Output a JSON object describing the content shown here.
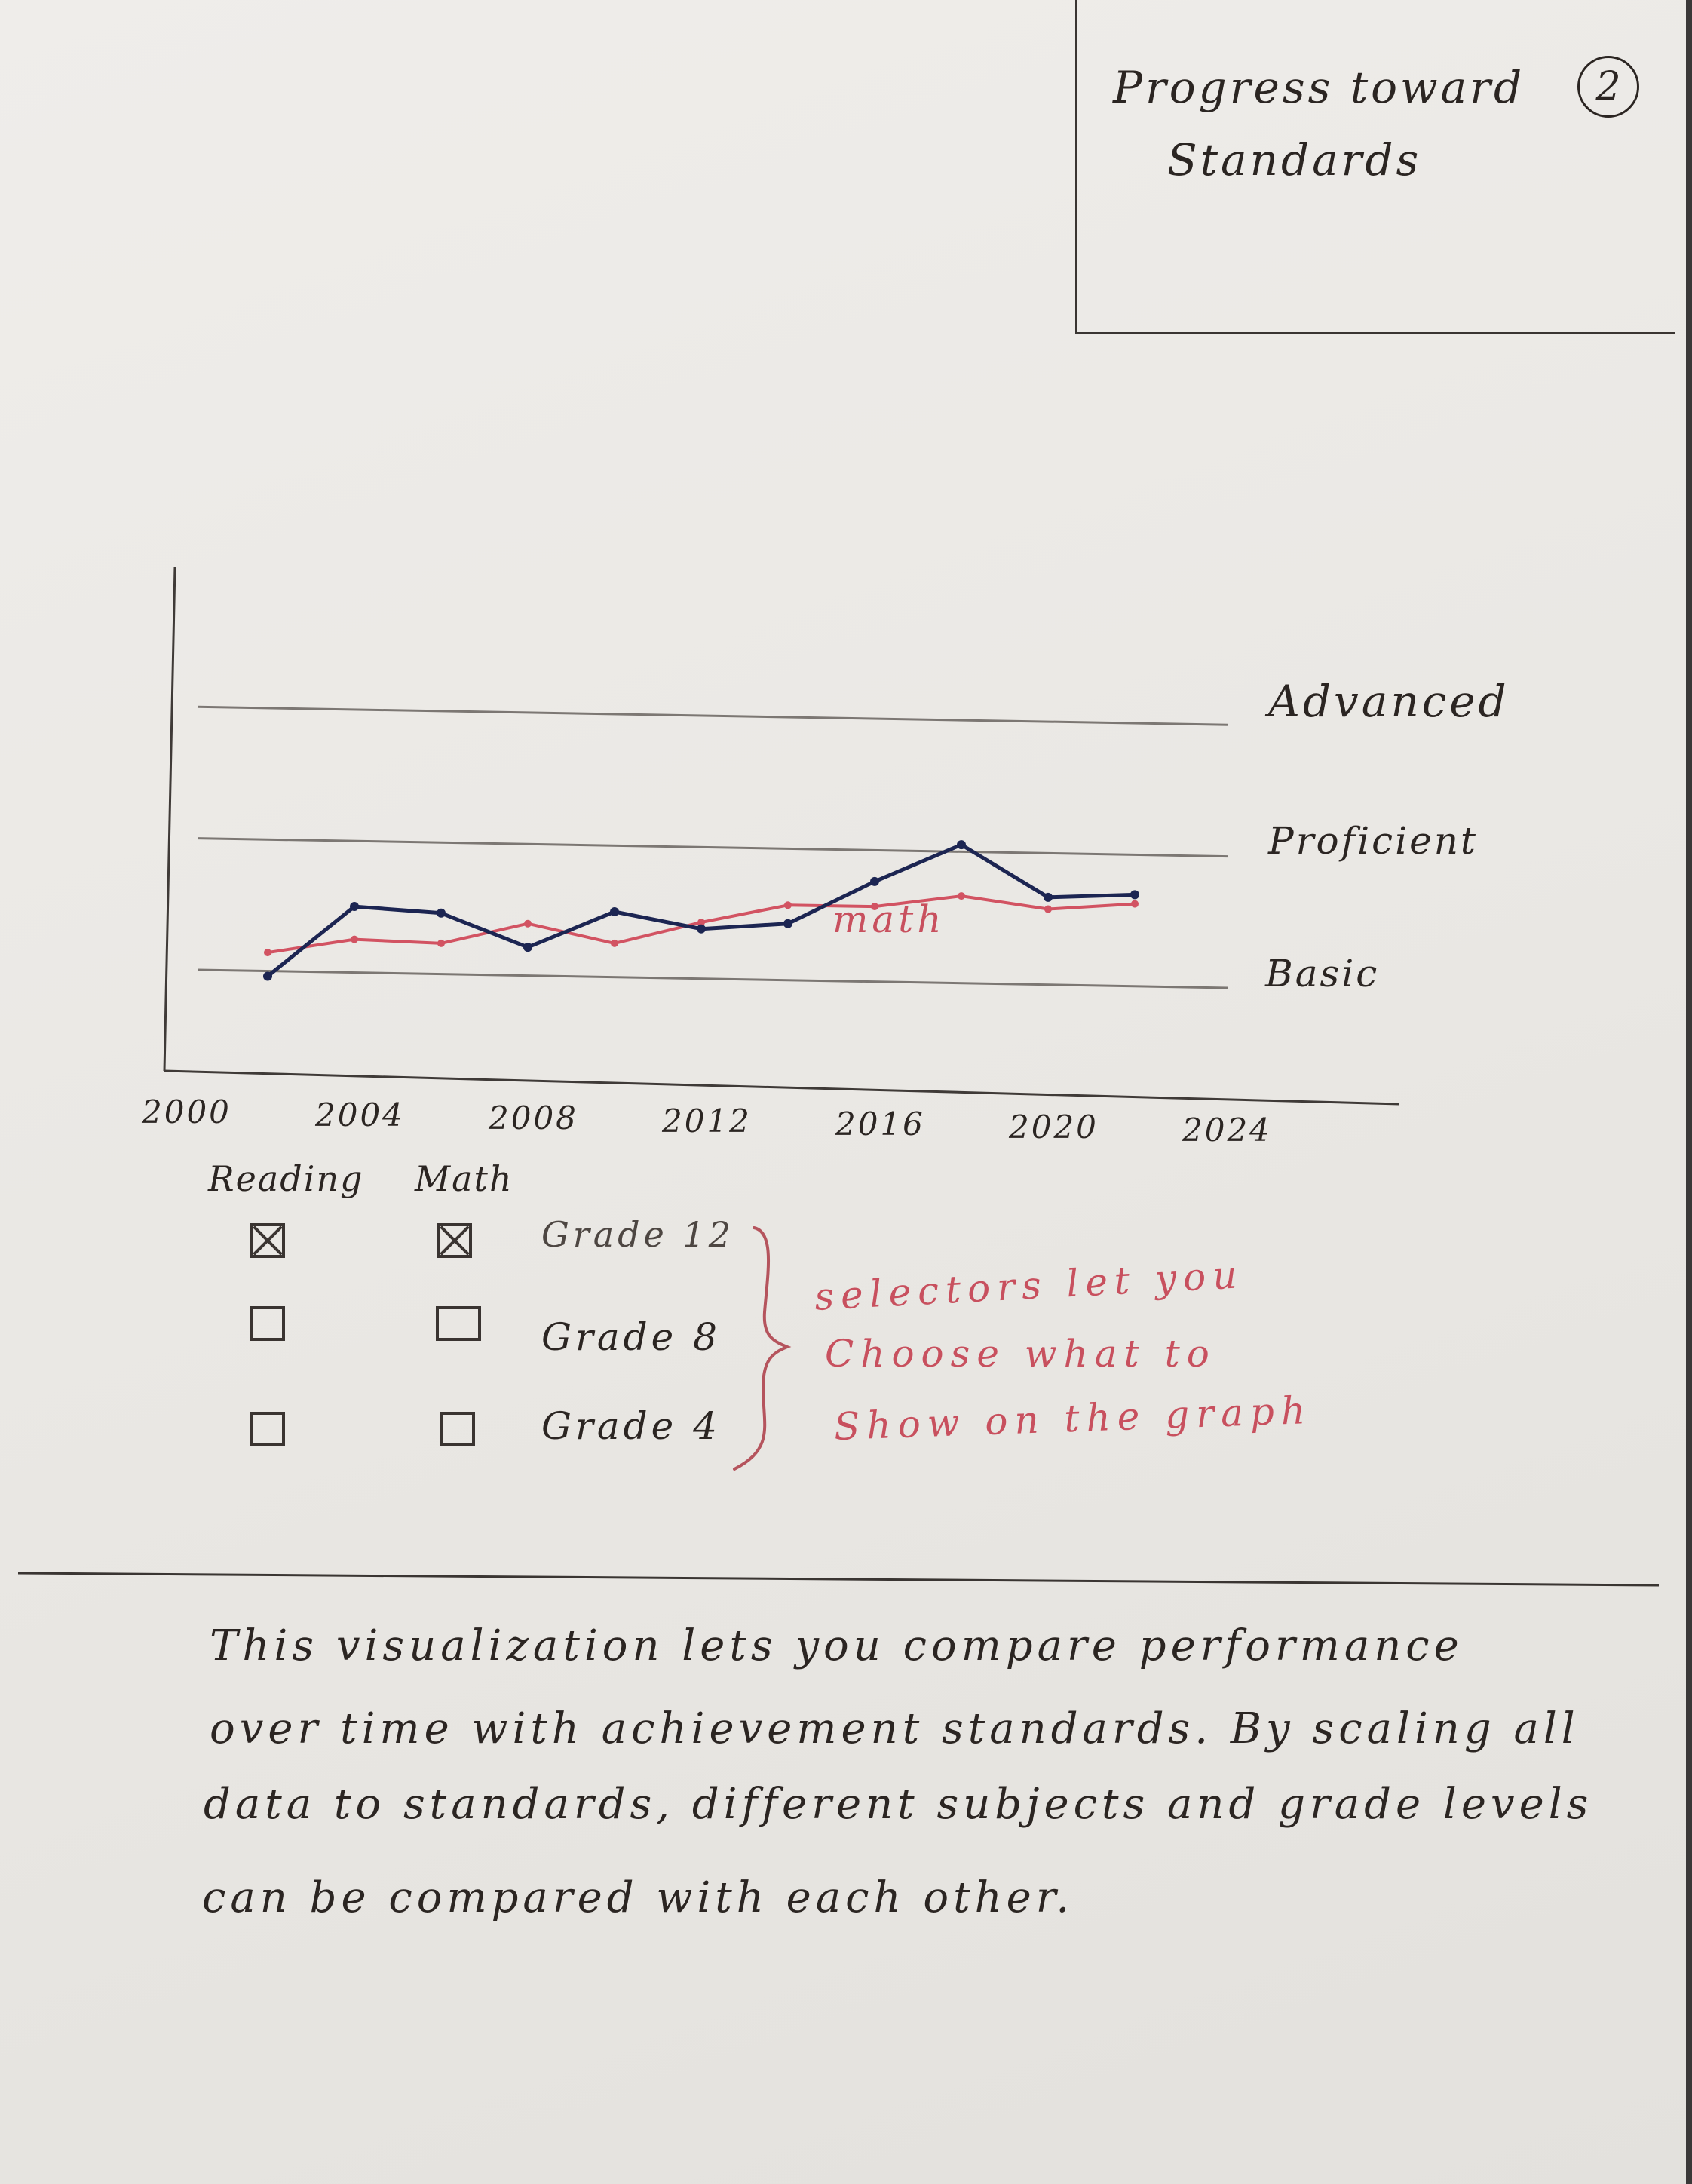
{
  "header": {
    "title_line1": "Progress toward",
    "title_line2": "Standards",
    "page_number": "2"
  },
  "chart_data": {
    "type": "line",
    "x_ticks": [
      "2000",
      "2004",
      "2008",
      "2012",
      "2016",
      "2020",
      "2024"
    ],
    "xlim": [
      2000,
      2024
    ],
    "y_scale": "achievement standards",
    "standards": [
      {
        "label": "Advanced",
        "value": 3
      },
      {
        "label": "Proficient",
        "value": 2
      },
      {
        "label": "Basic",
        "value": 1
      }
    ],
    "ylim": [
      0.3,
      4.2
    ],
    "series": [
      {
        "annotation": "math",
        "color": "#d25362",
        "x": [
          2002,
          2004,
          2006,
          2008,
          2010,
          2012,
          2014,
          2016,
          2018,
          2020,
          2022
        ],
        "values": [
          1.2,
          1.3,
          1.27,
          1.42,
          1.27,
          1.43,
          1.56,
          1.55,
          1.63,
          1.53,
          1.57
        ]
      },
      {
        "color": "#1c2552",
        "x": [
          2002,
          2004,
          2006,
          2008,
          2010,
          2012,
          2014,
          2016,
          2018,
          2020,
          2022
        ],
        "values": [
          1.02,
          1.55,
          1.5,
          1.24,
          1.51,
          1.38,
          1.42,
          1.74,
          2.02,
          1.62,
          1.64
        ]
      }
    ],
    "grid": false,
    "legend": "none"
  },
  "selectors": {
    "subjects": [
      "Reading",
      "Math"
    ],
    "grades": [
      "Grade 12",
      "Grade 8",
      "Grade 4"
    ],
    "checked": {
      "reading": [
        true,
        false,
        false
      ],
      "math": [
        true,
        false,
        false
      ]
    }
  },
  "annotation": {
    "lines": [
      "selectors let you",
      "Choose what to",
      "Show on the graph"
    ]
  },
  "description": {
    "lines": [
      "This visualization lets you compare performance",
      "over time with achievement standards. By scaling all",
      "data to standards, different subjects and grade levels",
      "can be compared with each other."
    ]
  }
}
